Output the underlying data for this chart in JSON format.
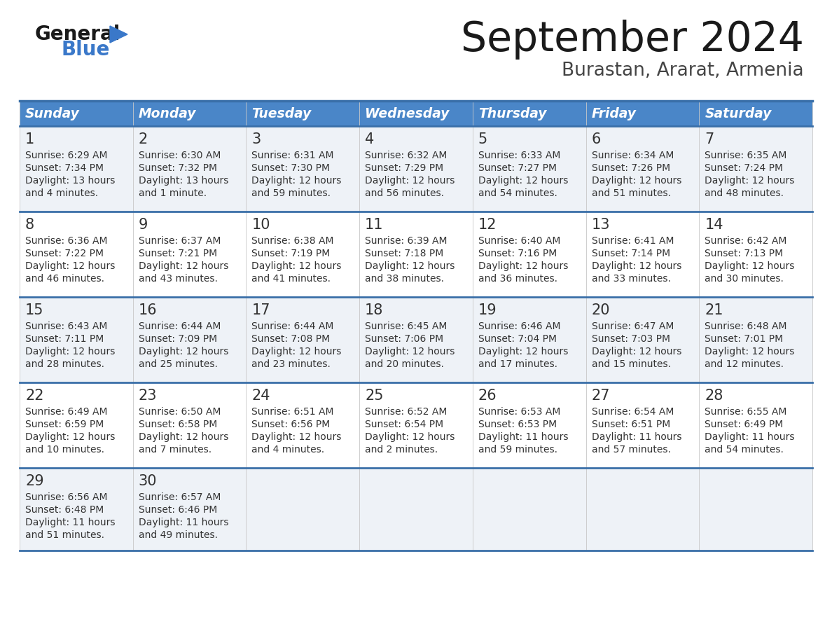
{
  "title": "September 2024",
  "subtitle": "Burastan, Ararat, Armenia",
  "header_color": "#4a86c8",
  "header_text_color": "#ffffff",
  "cell_bg_odd": "#eef2f7",
  "cell_bg_even": "#ffffff",
  "border_color": "#3a6fa8",
  "day_headers": [
    "Sunday",
    "Monday",
    "Tuesday",
    "Wednesday",
    "Thursday",
    "Friday",
    "Saturday"
  ],
  "weeks": [
    [
      {
        "day": "1",
        "sunrise": "6:29 AM",
        "sunset": "7:34 PM",
        "daylight1": "Daylight: 13 hours",
        "daylight2": "and 4 minutes."
      },
      {
        "day": "2",
        "sunrise": "6:30 AM",
        "sunset": "7:32 PM",
        "daylight1": "Daylight: 13 hours",
        "daylight2": "and 1 minute."
      },
      {
        "day": "3",
        "sunrise": "6:31 AM",
        "sunset": "7:30 PM",
        "daylight1": "Daylight: 12 hours",
        "daylight2": "and 59 minutes."
      },
      {
        "day": "4",
        "sunrise": "6:32 AM",
        "sunset": "7:29 PM",
        "daylight1": "Daylight: 12 hours",
        "daylight2": "and 56 minutes."
      },
      {
        "day": "5",
        "sunrise": "6:33 AM",
        "sunset": "7:27 PM",
        "daylight1": "Daylight: 12 hours",
        "daylight2": "and 54 minutes."
      },
      {
        "day": "6",
        "sunrise": "6:34 AM",
        "sunset": "7:26 PM",
        "daylight1": "Daylight: 12 hours",
        "daylight2": "and 51 minutes."
      },
      {
        "day": "7",
        "sunrise": "6:35 AM",
        "sunset": "7:24 PM",
        "daylight1": "Daylight: 12 hours",
        "daylight2": "and 48 minutes."
      }
    ],
    [
      {
        "day": "8",
        "sunrise": "6:36 AM",
        "sunset": "7:22 PM",
        "daylight1": "Daylight: 12 hours",
        "daylight2": "and 46 minutes."
      },
      {
        "day": "9",
        "sunrise": "6:37 AM",
        "sunset": "7:21 PM",
        "daylight1": "Daylight: 12 hours",
        "daylight2": "and 43 minutes."
      },
      {
        "day": "10",
        "sunrise": "6:38 AM",
        "sunset": "7:19 PM",
        "daylight1": "Daylight: 12 hours",
        "daylight2": "and 41 minutes."
      },
      {
        "day": "11",
        "sunrise": "6:39 AM",
        "sunset": "7:18 PM",
        "daylight1": "Daylight: 12 hours",
        "daylight2": "and 38 minutes."
      },
      {
        "day": "12",
        "sunrise": "6:40 AM",
        "sunset": "7:16 PM",
        "daylight1": "Daylight: 12 hours",
        "daylight2": "and 36 minutes."
      },
      {
        "day": "13",
        "sunrise": "6:41 AM",
        "sunset": "7:14 PM",
        "daylight1": "Daylight: 12 hours",
        "daylight2": "and 33 minutes."
      },
      {
        "day": "14",
        "sunrise": "6:42 AM",
        "sunset": "7:13 PM",
        "daylight1": "Daylight: 12 hours",
        "daylight2": "and 30 minutes."
      }
    ],
    [
      {
        "day": "15",
        "sunrise": "6:43 AM",
        "sunset": "7:11 PM",
        "daylight1": "Daylight: 12 hours",
        "daylight2": "and 28 minutes."
      },
      {
        "day": "16",
        "sunrise": "6:44 AM",
        "sunset": "7:09 PM",
        "daylight1": "Daylight: 12 hours",
        "daylight2": "and 25 minutes."
      },
      {
        "day": "17",
        "sunrise": "6:44 AM",
        "sunset": "7:08 PM",
        "daylight1": "Daylight: 12 hours",
        "daylight2": "and 23 minutes."
      },
      {
        "day": "18",
        "sunrise": "6:45 AM",
        "sunset": "7:06 PM",
        "daylight1": "Daylight: 12 hours",
        "daylight2": "and 20 minutes."
      },
      {
        "day": "19",
        "sunrise": "6:46 AM",
        "sunset": "7:04 PM",
        "daylight1": "Daylight: 12 hours",
        "daylight2": "and 17 minutes."
      },
      {
        "day": "20",
        "sunrise": "6:47 AM",
        "sunset": "7:03 PM",
        "daylight1": "Daylight: 12 hours",
        "daylight2": "and 15 minutes."
      },
      {
        "day": "21",
        "sunrise": "6:48 AM",
        "sunset": "7:01 PM",
        "daylight1": "Daylight: 12 hours",
        "daylight2": "and 12 minutes."
      }
    ],
    [
      {
        "day": "22",
        "sunrise": "6:49 AM",
        "sunset": "6:59 PM",
        "daylight1": "Daylight: 12 hours",
        "daylight2": "and 10 minutes."
      },
      {
        "day": "23",
        "sunrise": "6:50 AM",
        "sunset": "6:58 PM",
        "daylight1": "Daylight: 12 hours",
        "daylight2": "and 7 minutes."
      },
      {
        "day": "24",
        "sunrise": "6:51 AM",
        "sunset": "6:56 PM",
        "daylight1": "Daylight: 12 hours",
        "daylight2": "and 4 minutes."
      },
      {
        "day": "25",
        "sunrise": "6:52 AM",
        "sunset": "6:54 PM",
        "daylight1": "Daylight: 12 hours",
        "daylight2": "and 2 minutes."
      },
      {
        "day": "26",
        "sunrise": "6:53 AM",
        "sunset": "6:53 PM",
        "daylight1": "Daylight: 11 hours",
        "daylight2": "and 59 minutes."
      },
      {
        "day": "27",
        "sunrise": "6:54 AM",
        "sunset": "6:51 PM",
        "daylight1": "Daylight: 11 hours",
        "daylight2": "and 57 minutes."
      },
      {
        "day": "28",
        "sunrise": "6:55 AM",
        "sunset": "6:49 PM",
        "daylight1": "Daylight: 11 hours",
        "daylight2": "and 54 minutes."
      }
    ],
    [
      {
        "day": "29",
        "sunrise": "6:56 AM",
        "sunset": "6:48 PM",
        "daylight1": "Daylight: 11 hours",
        "daylight2": "and 51 minutes."
      },
      {
        "day": "30",
        "sunrise": "6:57 AM",
        "sunset": "6:46 PM",
        "daylight1": "Daylight: 11 hours",
        "daylight2": "and 49 minutes."
      },
      null,
      null,
      null,
      null,
      null
    ]
  ],
  "logo_color_general": "#1a1a1a",
  "logo_color_blue": "#3a78c9",
  "logo_triangle_color": "#3a78c9",
  "title_color": "#1a1a1a",
  "subtitle_color": "#444444",
  "cell_text_color": "#333333"
}
